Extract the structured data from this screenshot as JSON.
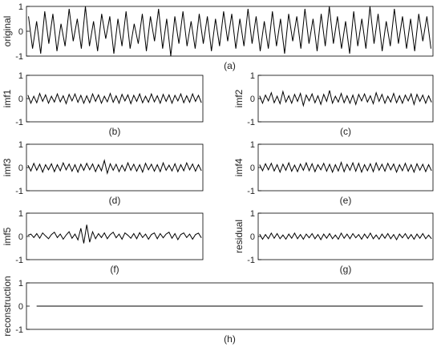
{
  "chart_data": [
    {
      "type": "line",
      "ylabel": "original",
      "caption": "(a)",
      "color": "#000000",
      "ylim": [
        -1,
        1
      ],
      "yticks": [
        -1,
        0,
        1
      ],
      "values": [
        0.6,
        -0.7,
        0.4,
        -0.9,
        0.8,
        -0.5,
        0.7,
        -0.8,
        0.3,
        -0.6,
        0.9,
        -0.4,
        0.5,
        -0.7,
        1.0,
        -0.6,
        0.4,
        -0.8,
        0.7,
        -0.3,
        0.6,
        -0.9,
        0.5,
        -0.6,
        0.8,
        -0.7,
        0.3,
        -0.5,
        0.7,
        -0.8,
        0.6,
        -0.4,
        0.9,
        -0.7,
        0.5,
        -1.0,
        0.6,
        -0.5,
        0.8,
        -0.6,
        0.4,
        -0.7,
        0.7,
        -0.5,
        0.6,
        -0.8,
        0.5,
        -0.6,
        0.8,
        -0.4,
        0.7,
        -0.7,
        0.5,
        -0.6,
        0.9,
        -0.5,
        0.6,
        -0.8,
        0.4,
        -0.7,
        0.8,
        -0.6,
        0.5,
        -0.9,
        0.7,
        -0.4,
        0.6,
        -0.7,
        0.9,
        -0.5,
        0.5,
        -0.8,
        0.7,
        -0.6,
        1.0,
        -0.5,
        0.6,
        -0.7,
        0.4,
        -0.9,
        0.8,
        -0.6,
        0.5,
        -0.7,
        1.0,
        -0.5,
        0.7,
        -0.8,
        0.4,
        -0.6,
        0.9,
        -0.5,
        0.6,
        -0.7,
        0.5,
        -0.8,
        0.7,
        -0.4,
        0.6,
        -0.7
      ]
    },
    {
      "type": "line",
      "ylabel": "imf1",
      "caption": "(b)",
      "color": "#000000",
      "ylim": [
        -1,
        1
      ],
      "yticks": [
        -1,
        0,
        1
      ],
      "values": [
        0.15,
        -0.2,
        0.1,
        -0.18,
        0.22,
        -0.12,
        0.16,
        -0.2,
        0.1,
        -0.15,
        0.2,
        -0.14,
        0.12,
        -0.22,
        0.18,
        -0.1,
        0.2,
        -0.16,
        0.14,
        -0.2,
        0.12,
        -0.18,
        0.2,
        -0.12,
        0.16,
        -0.2,
        0.1,
        -0.14,
        0.22,
        -0.16,
        0.12,
        -0.2,
        0.18,
        -0.1,
        0.16,
        -0.22,
        0.14,
        -0.12,
        0.2,
        -0.18,
        0.1,
        -0.16,
        0.2,
        -0.14,
        0.12,
        -0.2,
        0.18,
        -0.12,
        0.16,
        -0.2,
        0.14,
        -0.1,
        0.2,
        -0.18,
        0.12,
        -0.16,
        0.2,
        -0.12,
        0.14,
        -0.18
      ]
    },
    {
      "type": "line",
      "ylabel": "imf2",
      "caption": "(c)",
      "color": "#000000",
      "ylim": [
        -1,
        1
      ],
      "yticks": [
        -1,
        0,
        1
      ],
      "values": [
        0.12,
        -0.2,
        0.15,
        -0.1,
        0.25,
        -0.18,
        0.1,
        -0.22,
        0.3,
        -0.15,
        0.12,
        -0.2,
        0.18,
        -0.12,
        0.22,
        -0.3,
        0.15,
        -0.1,
        0.2,
        -0.18,
        0.12,
        -0.25,
        0.18,
        -0.12,
        0.35,
        -0.2,
        0.1,
        -0.15,
        0.22,
        -0.18,
        0.12,
        -0.2,
        0.15,
        -0.25,
        0.18,
        -0.1,
        0.2,
        -0.15,
        0.12,
        -0.22,
        0.25,
        -0.12,
        0.18,
        -0.2,
        0.1,
        -0.15,
        0.22,
        -0.18,
        0.12,
        -0.2,
        0.15,
        -0.1,
        0.2,
        -0.25,
        0.18,
        -0.12,
        0.15,
        -0.2,
        0.12,
        -0.16
      ]
    },
    {
      "type": "line",
      "ylabel": "imf3",
      "caption": "(d)",
      "color": "#000000",
      "ylim": [
        -1,
        1
      ],
      "yticks": [
        -1,
        0,
        1
      ],
      "values": [
        0.1,
        -0.15,
        0.18,
        -0.12,
        0.14,
        -0.2,
        0.12,
        -0.1,
        0.16,
        -0.18,
        0.12,
        -0.14,
        0.2,
        -0.1,
        0.15,
        -0.16,
        0.12,
        -0.2,
        0.14,
        -0.12,
        0.18,
        -0.1,
        0.15,
        -0.18,
        0.12,
        -0.14,
        0.3,
        -0.25,
        0.16,
        -0.12,
        0.14,
        -0.18,
        0.1,
        -0.15,
        0.2,
        -0.12,
        0.14,
        -0.16,
        0.12,
        -0.2,
        0.18,
        -0.1,
        0.14,
        -0.16,
        0.12,
        -0.18,
        0.2,
        -0.12,
        0.1,
        -0.15,
        0.16,
        -0.18,
        0.12,
        -0.14,
        0.2,
        -0.1,
        0.15,
        -0.16,
        0.12,
        -0.14
      ]
    },
    {
      "type": "line",
      "ylabel": "imf4",
      "caption": "(e)",
      "color": "#000000",
      "ylim": [
        -1,
        1
      ],
      "yticks": [
        -1,
        0,
        1
      ],
      "values": [
        0.12,
        -0.14,
        0.16,
        -0.1,
        0.18,
        -0.15,
        0.12,
        -0.2,
        0.14,
        -0.12,
        0.2,
        -0.16,
        0.1,
        -0.18,
        0.15,
        -0.12,
        0.2,
        -0.14,
        0.16,
        -0.18,
        0.12,
        -0.1,
        0.18,
        -0.16,
        0.14,
        -0.2,
        0.12,
        -0.15,
        0.22,
        -0.18,
        0.14,
        -0.12,
        0.2,
        -0.16,
        0.18,
        -0.2,
        0.12,
        -0.14,
        0.16,
        -0.18,
        0.2,
        -0.12,
        0.14,
        -0.16,
        0.18,
        -0.1,
        0.15,
        -0.2,
        0.12,
        -0.14,
        0.18,
        -0.16,
        0.12,
        -0.2,
        0.16,
        -0.12,
        0.14,
        -0.18,
        0.12,
        -0.14
      ]
    },
    {
      "type": "line",
      "ylabel": "imf5",
      "caption": "(f)",
      "color": "#000000",
      "ylim": [
        -1,
        1
      ],
      "yticks": [
        -1,
        0,
        1
      ],
      "values": [
        0.05,
        0.1,
        -0.05,
        0.12,
        -0.08,
        0.15,
        0.02,
        -0.1,
        0.08,
        0.18,
        -0.05,
        0.1,
        -0.12,
        0.06,
        0.2,
        -0.08,
        0.1,
        -0.15,
        0.35,
        -0.3,
        0.5,
        -0.25,
        0.2,
        -0.1,
        0.12,
        -0.05,
        0.15,
        -0.1,
        0.08,
        0.18,
        -0.06,
        0.1,
        -0.12,
        0.15,
        0.05,
        -0.08,
        0.12,
        -0.1,
        0.16,
        -0.05,
        0.1,
        -0.12,
        0.08,
        0.15,
        -0.1,
        0.12,
        -0.06,
        0.1,
        0.18,
        -0.08,
        0.12,
        -0.14,
        0.08,
        0.15,
        -0.05,
        0.1,
        -0.12,
        0.08,
        0.14,
        -0.06
      ]
    },
    {
      "type": "line",
      "ylabel": "residual",
      "caption": "(g)",
      "color": "#000000",
      "ylim": [
        -1,
        1
      ],
      "yticks": [
        -1,
        0,
        1
      ],
      "values": [
        0.1,
        -0.12,
        0.08,
        -0.1,
        0.14,
        -0.08,
        0.12,
        -0.1,
        0.06,
        -0.12,
        0.1,
        -0.08,
        0.14,
        -0.1,
        0.08,
        -0.12,
        0.1,
        -0.06,
        0.12,
        -0.1,
        0.08,
        -0.14,
        0.1,
        -0.08,
        0.12,
        -0.1,
        0.06,
        -0.12,
        0.14,
        -0.08,
        0.1,
        -0.1,
        0.12,
        -0.06,
        0.08,
        -0.12,
        0.1,
        -0.08,
        0.14,
        -0.1,
        0.06,
        -0.12,
        0.1,
        -0.08,
        0.12,
        -0.1,
        0.08,
        -0.14,
        0.1,
        -0.06,
        0.12,
        -0.1,
        0.08,
        -0.12,
        0.1,
        -0.08,
        0.12,
        -0.1,
        0.06,
        -0.1
      ]
    },
    {
      "type": "line",
      "ylabel": "reconstruction",
      "caption": "(h)",
      "color": "#000000",
      "ylim": [
        -1,
        1
      ],
      "yticks": [
        -1,
        0,
        1
      ],
      "values": [
        0,
        0,
        0,
        0,
        0,
        0,
        0,
        0,
        0,
        0,
        0,
        0,
        0,
        0,
        0,
        0,
        0,
        0,
        0,
        0
      ]
    }
  ]
}
